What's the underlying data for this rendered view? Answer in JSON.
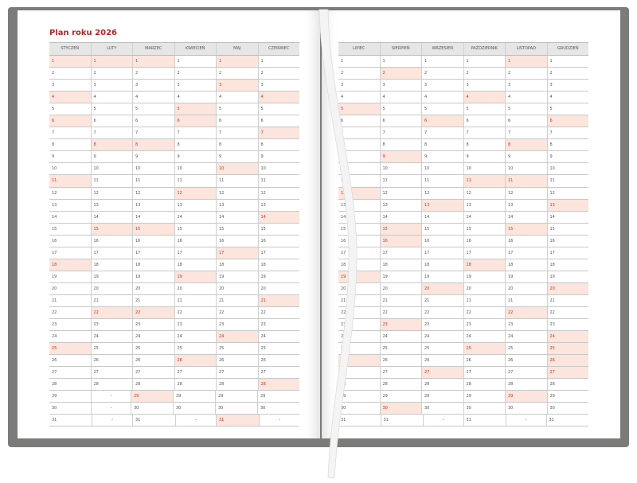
{
  "title": "Plan roku 2026",
  "colors": {
    "cover": "#7b7b79",
    "highlight": "#fbe5dc",
    "accent": "#b3262a"
  },
  "months": [
    {
      "name": "STYCZEŃ",
      "days": 31,
      "highlight": [
        1,
        4,
        6,
        11,
        18,
        25
      ]
    },
    {
      "name": "LUTY",
      "days": 28,
      "highlight": [
        1,
        8,
        15,
        22
      ]
    },
    {
      "name": "MARZEC",
      "days": 31,
      "highlight": [
        1,
        8,
        15,
        22,
        29
      ]
    },
    {
      "name": "KWIECIEŃ",
      "days": 30,
      "highlight": [
        5,
        6,
        12,
        19,
        26
      ]
    },
    {
      "name": "MAJ",
      "days": 31,
      "highlight": [
        1,
        3,
        10,
        17,
        24,
        31
      ]
    },
    {
      "name": "CZERWIEC",
      "days": 30,
      "highlight": [
        4,
        7,
        14,
        21,
        28
      ]
    },
    {
      "name": "LIPIEC",
      "days": 31,
      "highlight": [
        5,
        12,
        19,
        26
      ]
    },
    {
      "name": "SIERPIEŃ",
      "days": 31,
      "highlight": [
        2,
        9,
        15,
        16,
        23,
        30
      ]
    },
    {
      "name": "WRZESIEŃ",
      "days": 30,
      "highlight": [
        6,
        13,
        20,
        27
      ]
    },
    {
      "name": "PAŹDZIERNIK",
      "days": 31,
      "highlight": [
        4,
        11,
        18,
        25
      ]
    },
    {
      "name": "LISTOPAD",
      "days": 30,
      "highlight": [
        1,
        8,
        11,
        15,
        22,
        29
      ]
    },
    {
      "name": "GRUDZIEŃ",
      "days": 31,
      "highlight": [
        6,
        13,
        20,
        24,
        25,
        26,
        27
      ]
    }
  ],
  "empty_marker": "–"
}
